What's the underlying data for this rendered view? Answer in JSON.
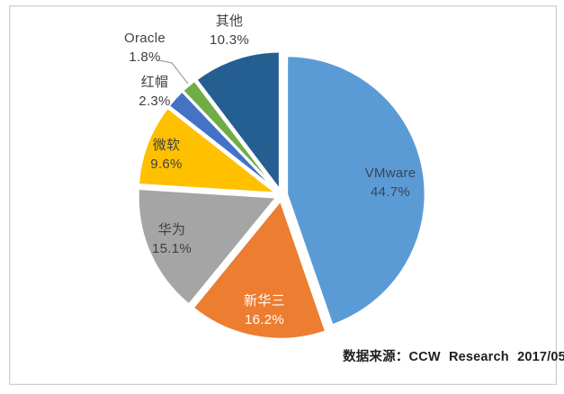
{
  "chart_data": {
    "type": "pie",
    "title": "",
    "direction": "clockwise",
    "start_angle_deg": 0,
    "legend": "none (labels on/near slices)",
    "slices": [
      {
        "key": "vmware",
        "label": "VMware",
        "value": 44.7,
        "pct": "44.7%",
        "color": "#5B9BD5",
        "label_color": "#3e4450"
      },
      {
        "key": "h3c",
        "label": "新华三",
        "value": 16.2,
        "pct": "16.2%",
        "color": "#ED7D31",
        "label_color": "#ffffff"
      },
      {
        "key": "huawei",
        "label": "华为",
        "value": 15.1,
        "pct": "15.1%",
        "color": "#A5A5A5",
        "label_color": "#404040"
      },
      {
        "key": "microsoft",
        "label": "微软",
        "value": 9.6,
        "pct": "9.6%",
        "color": "#FFC000",
        "label_color": "#404040"
      },
      {
        "key": "redhat",
        "label": "红帽",
        "value": 2.3,
        "pct": "2.3%",
        "color": "#4472C4",
        "label_color": "#404040"
      },
      {
        "key": "oracle",
        "label": "Oracle",
        "value": 1.8,
        "pct": "1.8%",
        "color": "#70AD47",
        "label_color": "#404040"
      },
      {
        "key": "others",
        "label": "其他",
        "value": 10.3,
        "pct": "10.3%",
        "color": "#255E91",
        "label_color": "#404040"
      }
    ],
    "slice_border_color": "#ffffff",
    "leader_line_color": "#a6a6a6",
    "source_note": "数据来源：CCW  Research  2017/05"
  }
}
